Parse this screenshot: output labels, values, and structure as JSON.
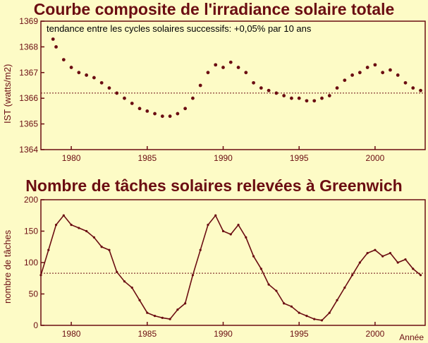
{
  "chart_data": [
    {
      "type": "scatter",
      "title": "Courbe composite de l'irradiance solaire totale",
      "ylabel": "IST (watts/m2)",
      "annotation": "tendance entre les cycles solaires successifs: +0,05% par 10 ans",
      "xlim": [
        1978,
        2003.3
      ],
      "ylim": [
        1364,
        1369
      ],
      "xticks": [
        "1980",
        "1985",
        "1990",
        "1995",
        "2000"
      ],
      "yticks": [
        "1364",
        "1365",
        "1366",
        "1367",
        "1368",
        "1369"
      ],
      "reference_line": 1366.2,
      "series": [
        {
          "x": [
            1978.8,
            1979.0,
            1979.5,
            1980.0,
            1980.5,
            1981.0,
            1981.5,
            1982.0,
            1982.5,
            1983.0,
            1983.5,
            1984.0,
            1984.5,
            1985.0,
            1985.5,
            1986.0,
            1986.5,
            1987.0,
            1987.5,
            1988.0,
            1988.5,
            1989.0,
            1989.5,
            1990.0,
            1990.5,
            1991.0,
            1991.5,
            1992.0,
            1992.5,
            1993.0,
            1993.5,
            1994.0,
            1994.5,
            1995.0,
            1995.5,
            1996.0,
            1996.5,
            1997.0,
            1997.5,
            1998.0,
            1998.5,
            1999.0,
            1999.5,
            2000.0,
            2000.5,
            2001.0,
            2001.5,
            2002.0,
            2002.5,
            2003.0
          ],
          "y": [
            1368.3,
            1368.0,
            1367.5,
            1367.2,
            1367.0,
            1366.9,
            1366.8,
            1366.6,
            1366.4,
            1366.2,
            1366.0,
            1365.8,
            1365.6,
            1365.5,
            1365.4,
            1365.3,
            1365.3,
            1365.4,
            1365.6,
            1366.0,
            1366.5,
            1367.0,
            1367.3,
            1367.2,
            1367.4,
            1367.2,
            1367.0,
            1366.6,
            1366.4,
            1366.3,
            1366.2,
            1366.1,
            1366.0,
            1366.0,
            1365.9,
            1365.9,
            1366.0,
            1366.1,
            1366.4,
            1366.7,
            1366.9,
            1367.0,
            1367.2,
            1367.3,
            1367.0,
            1367.1,
            1366.9,
            1366.6,
            1366.4,
            1366.3
          ]
        }
      ]
    },
    {
      "type": "line",
      "title": "Nombre de tâches solaires relevées à Greenwich",
      "ylabel": "nombre de tâches",
      "xlabel": "Année",
      "xlim": [
        1978,
        2003.3
      ],
      "ylim": [
        0,
        200
      ],
      "xticks": [
        "1980",
        "1985",
        "1990",
        "1995",
        "2000"
      ],
      "yticks": [
        "0",
        "50",
        "100",
        "150",
        "200"
      ],
      "reference_line": 83,
      "series": [
        {
          "x": [
            1978.0,
            1978.5,
            1979.0,
            1979.5,
            1980.0,
            1980.5,
            1981.0,
            1981.5,
            1982.0,
            1982.5,
            1983.0,
            1983.5,
            1984.0,
            1984.5,
            1985.0,
            1985.5,
            1986.0,
            1986.5,
            1987.0,
            1987.5,
            1988.0,
            1988.5,
            1989.0,
            1989.5,
            1990.0,
            1990.5,
            1991.0,
            1991.5,
            1992.0,
            1992.5,
            1993.0,
            1993.5,
            1994.0,
            1994.5,
            1995.0,
            1995.5,
            1996.0,
            1996.5,
            1997.0,
            1997.5,
            1998.0,
            1998.5,
            1999.0,
            1999.5,
            2000.0,
            2000.5,
            2001.0,
            2001.5,
            2002.0,
            2002.5,
            2003.0
          ],
          "y": [
            80,
            120,
            160,
            175,
            160,
            155,
            150,
            140,
            125,
            120,
            85,
            70,
            60,
            40,
            20,
            15,
            12,
            10,
            25,
            35,
            80,
            120,
            160,
            175,
            150,
            145,
            160,
            140,
            110,
            90,
            65,
            55,
            35,
            30,
            20,
            15,
            10,
            8,
            20,
            40,
            60,
            80,
            100,
            115,
            120,
            110,
            115,
            100,
            105,
            90,
            80
          ]
        }
      ]
    }
  ]
}
